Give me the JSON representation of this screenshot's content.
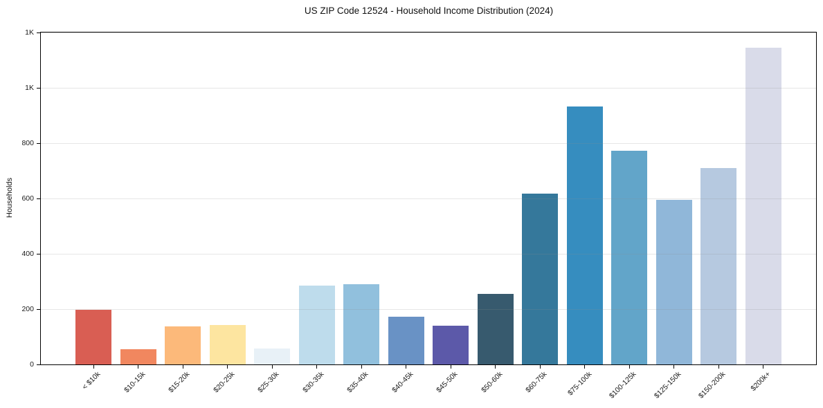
{
  "header": {
    "title": "US ZIP Code 12524 - Household Income Distribution (2024)"
  },
  "chart_data": {
    "type": "bar",
    "title": "US ZIP Code 12524 - Household Income Distribution (2024)",
    "xlabel": "",
    "ylabel": "Households",
    "categories": [
      "< $10k",
      "$10-15k",
      "$15-20k",
      "$20-25k",
      "$25-30k",
      "$30-35k",
      "$35-40k",
      "$40-45k",
      "$45-50k",
      "$50-60k",
      "$60-75k",
      "$75-100k",
      "$100-125k",
      "$125-150k",
      "$150-200k",
      "$200k+"
    ],
    "values": [
      198,
      55,
      138,
      143,
      57,
      284,
      290,
      172,
      140,
      256,
      618,
      933,
      773,
      594,
      710,
      1145
    ],
    "bar_colors": [
      "#d95e53",
      "#f1875f",
      "#fcb97a",
      "#fde5a0",
      "#e8f1f7",
      "#bedcec",
      "#91c0dd",
      "#6992c5",
      "#5c59a9",
      "#375a6e",
      "#35789b",
      "#368dbf",
      "#62a5c9",
      "#90b7d9",
      "#b6c9e0",
      "#d9dbe9"
    ],
    "ylim": [
      0,
      1200
    ],
    "ytick_values": [
      0,
      200,
      400,
      600,
      800,
      1000,
      1200
    ],
    "ytick_labels": [
      "0",
      "200",
      "400",
      "600",
      "800",
      "1K",
      "1K"
    ],
    "grid": "horizontal",
    "legend_position": "none",
    "plot_background": "#ffffff",
    "spine_color": "#000000"
  }
}
